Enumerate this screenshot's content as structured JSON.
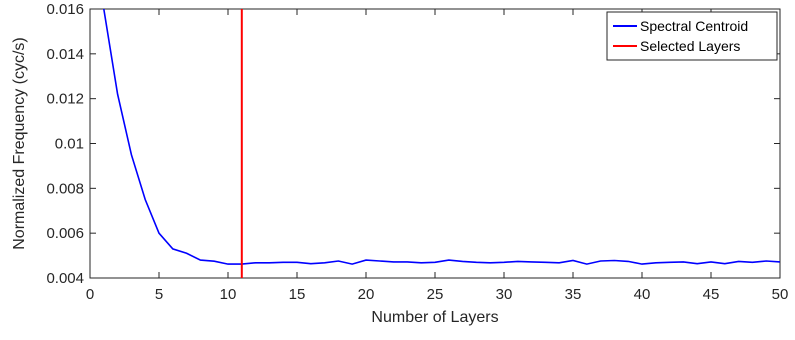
{
  "chart_data": {
    "type": "line",
    "xlabel": "Number of Layers",
    "ylabel": "Normalized Frequency (cyc/s)",
    "xlim": [
      0,
      50
    ],
    "ylim": [
      0.004,
      0.016
    ],
    "x_ticks": [
      0,
      5,
      10,
      15,
      20,
      25,
      30,
      35,
      40,
      45,
      50
    ],
    "y_ticks": [
      0.004,
      0.006,
      0.008,
      0.01,
      0.012,
      0.014,
      0.016
    ],
    "y_tick_labels": [
      "0.004",
      "0.006",
      "0.008",
      "0.01",
      "0.012",
      "0.014",
      "0.016"
    ],
    "grid": false,
    "legend_position": "top-right",
    "series": [
      {
        "name": "Spectral Centroid",
        "color": "#0000ff",
        "x": [
          1,
          2,
          3,
          4,
          5,
          6,
          7,
          8,
          9,
          10,
          11,
          12,
          13,
          14,
          15,
          16,
          17,
          18,
          19,
          20,
          21,
          22,
          23,
          24,
          25,
          26,
          27,
          28,
          29,
          30,
          31,
          32,
          33,
          34,
          35,
          36,
          37,
          38,
          39,
          40,
          41,
          42,
          43,
          44,
          45,
          46,
          47,
          48,
          49,
          50
        ],
        "y": [
          0.016,
          0.0122,
          0.0095,
          0.0075,
          0.006,
          0.0053,
          0.0051,
          0.0048,
          0.00475,
          0.00462,
          0.00462,
          0.00468,
          0.00468,
          0.0047,
          0.0047,
          0.00464,
          0.00468,
          0.00476,
          0.00462,
          0.0048,
          0.00476,
          0.00472,
          0.00472,
          0.00468,
          0.0047,
          0.0048,
          0.00474,
          0.0047,
          0.00468,
          0.0047,
          0.00474,
          0.00472,
          0.0047,
          0.00468,
          0.00478,
          0.00462,
          0.00476,
          0.00478,
          0.00474,
          0.00462,
          0.00468,
          0.0047,
          0.00472,
          0.00464,
          0.00472,
          0.00464,
          0.00474,
          0.0047,
          0.00476,
          0.00472
        ]
      },
      {
        "name": "Selected Layers",
        "color": "#ff0000",
        "type": "vline",
        "x": 11
      }
    ]
  }
}
